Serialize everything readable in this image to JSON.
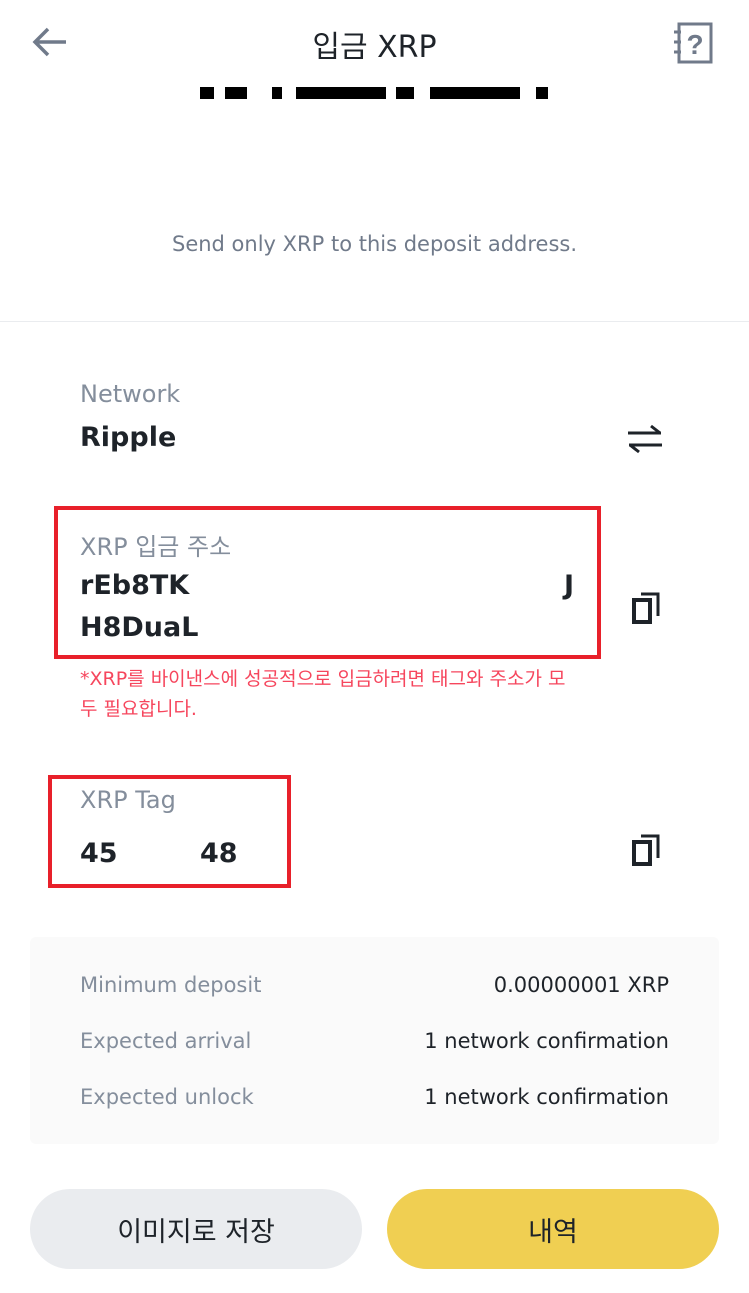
{
  "header": {
    "title": "입금 XRP",
    "back_icon": "arrow-left-icon",
    "help_icon": "help-book-icon"
  },
  "notice": "Send only XRP to this deposit address.",
  "network": {
    "label": "Network",
    "value": "Ripple",
    "switch_icon": "swap-arrows-icon"
  },
  "address": {
    "label": "XRP 입금 주소",
    "line1_start": "rEb8TK",
    "line1_end": "J",
    "line2": "H8DuaL",
    "copy_icon": "copy-icon"
  },
  "warning": "*XRP를 바이낸스에 성공적으로 입금하려면 태그와 주소가 모두 필요합니다.",
  "tag": {
    "label": "XRP Tag",
    "value_start": "45",
    "value_end": "48",
    "copy_icon": "copy-icon"
  },
  "info": [
    {
      "key": "Minimum deposit",
      "value": "0.00000001 XRP"
    },
    {
      "key": "Expected arrival",
      "value": "1 network confirmation"
    },
    {
      "key": "Expected unlock",
      "value": "1 network confirmation"
    }
  ],
  "buttons": {
    "save_image": "이미지로 저장",
    "history": "내역"
  },
  "colors": {
    "accent": "#f0cf52",
    "highlight_box": "#e8202a",
    "warning": "#f6465d"
  }
}
